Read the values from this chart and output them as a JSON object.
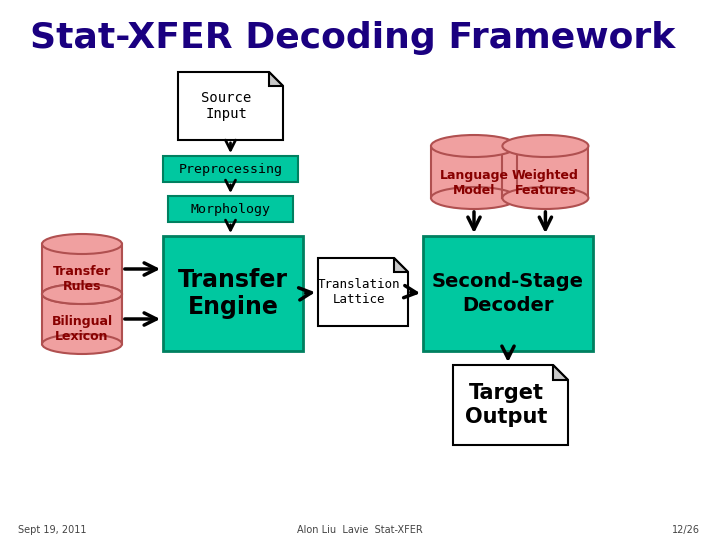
{
  "title": "Stat-XFER Decoding Framework",
  "title_color": "#1a0080",
  "title_fontsize": 26,
  "bg_color": "#ffffff",
  "teal_color": "#00c8a0",
  "teal_border": "#008060",
  "pink_color": "#f0a0a0",
  "pink_border": "#b05050",
  "doc_border": "#000000",
  "doc_fill": "#ffffff",
  "fold_color": "#c8c8c8",
  "arrow_color": "#000000",
  "text_dark": "#000000",
  "text_red": "#880000",
  "footer_left": "Sept 19, 2011",
  "footer_center": "Alon Liu  Lavie  Stat-XFER",
  "footer_right": "12/26"
}
